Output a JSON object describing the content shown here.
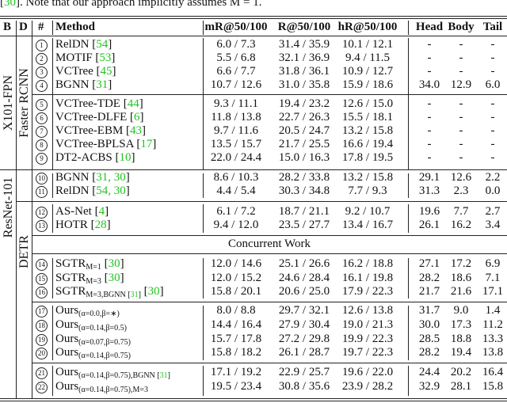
{
  "caption_line": {
    "pre": "[",
    "cite": "30",
    "post": "]. Note that our approach implicitly assumes M = 1."
  },
  "headers": {
    "b": "B",
    "d": "D",
    "num": "#",
    "method": "Method",
    "mr": "mR@50/100",
    "r": "R@50/100",
    "hr": "hR@50/100",
    "head": "Head",
    "body": "Body",
    "tail": "Tail"
  },
  "groups": {
    "backbone_1": "X101-FPN",
    "backbone_2": "ResNet-101",
    "detector_1": "Faster RCNN",
    "detector_2": "DETR"
  },
  "concurrent_label": "Concurrent Work",
  "rows": [
    {
      "n": "1",
      "name": "RelDN",
      "sub": "",
      "sub_cite": "",
      "cites": "54",
      "mr": "6.0 / 7.3",
      "r": "31.4 / 35.9",
      "hr": "10.1 / 12.1",
      "head": "-",
      "body": "-",
      "tail": "-"
    },
    {
      "n": "2",
      "name": "MOTIF",
      "sub": "",
      "sub_cite": "",
      "cites": "53",
      "mr": "5.5 / 6.8",
      "r": "32.1 / 36.9",
      "hr": "9.4 / 11.5",
      "head": "-",
      "body": "-",
      "tail": "-"
    },
    {
      "n": "3",
      "name": "VCTree",
      "sub": "",
      "sub_cite": "",
      "cites": "45",
      "mr": "6.6 / 7.7",
      "r": "31.8 / 36.1",
      "hr": "10.9 / 12.7",
      "head": "-",
      "body": "-",
      "tail": "-"
    },
    {
      "n": "4",
      "name": "BGNN",
      "sub": "",
      "sub_cite": "",
      "cites": "31",
      "mr": "10.7 / 12.6",
      "r": "31.0 / 35.8",
      "hr": "15.9 / 18.6",
      "head": "34.0",
      "body": "12.9",
      "tail": "6.0"
    },
    {
      "n": "5",
      "name": "VCTree-TDE",
      "sub": "",
      "sub_cite": "",
      "cites": "44",
      "mr": "9.3 / 11.1",
      "r": "19.4 / 23.2",
      "hr": "12.6 / 15.0",
      "head": "-",
      "body": "-",
      "tail": "-"
    },
    {
      "n": "6",
      "name": "VCTree-DLFE",
      "sub": "",
      "sub_cite": "",
      "cites": "6",
      "mr": "11.8 / 13.8",
      "r": "22.7 / 26.3",
      "hr": "15.5 / 18.1",
      "head": "-",
      "body": "-",
      "tail": "-"
    },
    {
      "n": "7",
      "name": "VCTree-EBM",
      "sub": "",
      "sub_cite": "",
      "cites": "43",
      "mr": "9.7 / 11.6",
      "r": "20.5 / 24.7",
      "hr": "13.2 / 15.8",
      "head": "-",
      "body": "-",
      "tail": "-"
    },
    {
      "n": "8",
      "name": "VCTree-BPLSA",
      "sub": "",
      "sub_cite": "",
      "cites": "17",
      "mr": "13.5 / 15.7",
      "r": "21.7 / 25.5",
      "hr": "16.6 / 19.4",
      "head": "-",
      "body": "-",
      "tail": "-"
    },
    {
      "n": "9",
      "name": "DT2-ACBS",
      "sub": "",
      "sub_cite": "",
      "cites": "10",
      "mr": "22.0 / 24.4",
      "r": "15.0 / 16.3",
      "hr": "17.8 / 19.5",
      "head": "-",
      "body": "-",
      "tail": "-"
    },
    {
      "n": "10",
      "name": "BGNN",
      "sub": "",
      "sub_cite": "",
      "cites": "31, 30",
      "mr": "8.6 / 10.3",
      "r": "28.2 / 33.8",
      "hr": "13.2 / 15.8",
      "head": "29.1",
      "body": "12.6",
      "tail": "2.2"
    },
    {
      "n": "11",
      "name": "RelDN",
      "sub": "",
      "sub_cite": "",
      "cites": "54, 30",
      "mr": "4.4 / 5.4",
      "r": "30.3 / 34.8",
      "hr": "7.7 / 9.3",
      "head": "31.3",
      "body": "2.3",
      "tail": "0.0"
    },
    {
      "n": "12",
      "name": "AS-Net",
      "sub": "",
      "sub_cite": "",
      "cites": "4",
      "mr": "6.1 / 7.2",
      "r": "18.7 / 21.1",
      "hr": "9.2 / 10.7",
      "head": "19.6",
      "body": "7.7",
      "tail": "2.7"
    },
    {
      "n": "13",
      "name": "HOTR",
      "sub": "",
      "sub_cite": "",
      "cites": "28",
      "mr": "9.4 / 12.0",
      "r": "23.5 / 27.7",
      "hr": "13.4 / 16.7",
      "head": "26.1",
      "body": "16.2",
      "tail": "3.4"
    },
    {
      "n": "14",
      "name": "SGTR",
      "sub": "M=1",
      "sub_cite": "",
      "cites": "30",
      "mr": "12.0 / 14.6",
      "r": "25.1 / 26.6",
      "hr": "16.2 / 18.8",
      "head": "27.1",
      "body": "17.2",
      "tail": "6.9"
    },
    {
      "n": "15",
      "name": "SGTR",
      "sub": "M=3",
      "sub_cite": "",
      "cites": "30",
      "mr": "12.0 / 15.2",
      "r": "24.6 / 28.4",
      "hr": "16.1 / 19.8",
      "head": "28.2",
      "body": "18.6",
      "tail": "7.1"
    },
    {
      "n": "16",
      "name": "SGTR",
      "sub": "M=3,BGNN ",
      "sub_cite": "31",
      "cites": "30",
      "mr": "15.8 / 20.1",
      "r": "20.6 / 25.0",
      "hr": "17.9 / 22.3",
      "head": "21.7",
      "body": "21.6",
      "tail": "17.1"
    },
    {
      "n": "17",
      "name": "Ours",
      "sub": "(α=0.0,β=∗)",
      "sub_cite": "",
      "cites": "",
      "mr": "8.0 / 8.8",
      "r": "29.7 / 32.1",
      "hr": "12.6 / 13.8",
      "head": "31.7",
      "body": "9.0",
      "tail": "1.4"
    },
    {
      "n": "18",
      "name": "Ours",
      "sub": "(α=0.14,β=0.5)",
      "sub_cite": "",
      "cites": "",
      "mr": "14.4 / 16.4",
      "r": "27.9 / 30.4",
      "hr": "19.0 / 21.3",
      "head": "30.0",
      "body": "17.3",
      "tail": "11.2"
    },
    {
      "n": "19",
      "name": "Ours",
      "sub": "(α=0.07,β=0.75)",
      "sub_cite": "",
      "cites": "",
      "mr": "15.7 / 17.8",
      "r": "27.2 / 29.8",
      "hr": "19.9 / 22.3",
      "head": "28.5",
      "body": "18.8",
      "tail": "13.3"
    },
    {
      "n": "20",
      "name": "Ours",
      "sub": "(α=0.14,β=0.75)",
      "sub_cite": "",
      "cites": "",
      "mr": "15.8 / 18.2",
      "r": "26.1 / 28.7",
      "hr": "19.7 / 22.3",
      "head": "28.2",
      "body": "19.4",
      "tail": "13.8"
    },
    {
      "n": "21",
      "name": "Ours",
      "sub": "(α=0.14,β=0.75),BGNN ",
      "sub_cite": "31",
      "cites": "",
      "mr": "17.1 / 19.2",
      "r": "22.9 / 25.7",
      "hr": "19.6 / 22.0",
      "head": "24.4",
      "body": "20.2",
      "tail": "16.4"
    },
    {
      "n": "22",
      "name": "Ours",
      "sub": "(α=0.14,β=0.75),M=3",
      "sub_cite": "",
      "cites": "",
      "mr": "19.5 / 23.4",
      "r": "30.8 / 35.6",
      "hr": "23.9 / 28.2",
      "head": "32.9",
      "body": "28.1",
      "tail": "15.8"
    }
  ]
}
